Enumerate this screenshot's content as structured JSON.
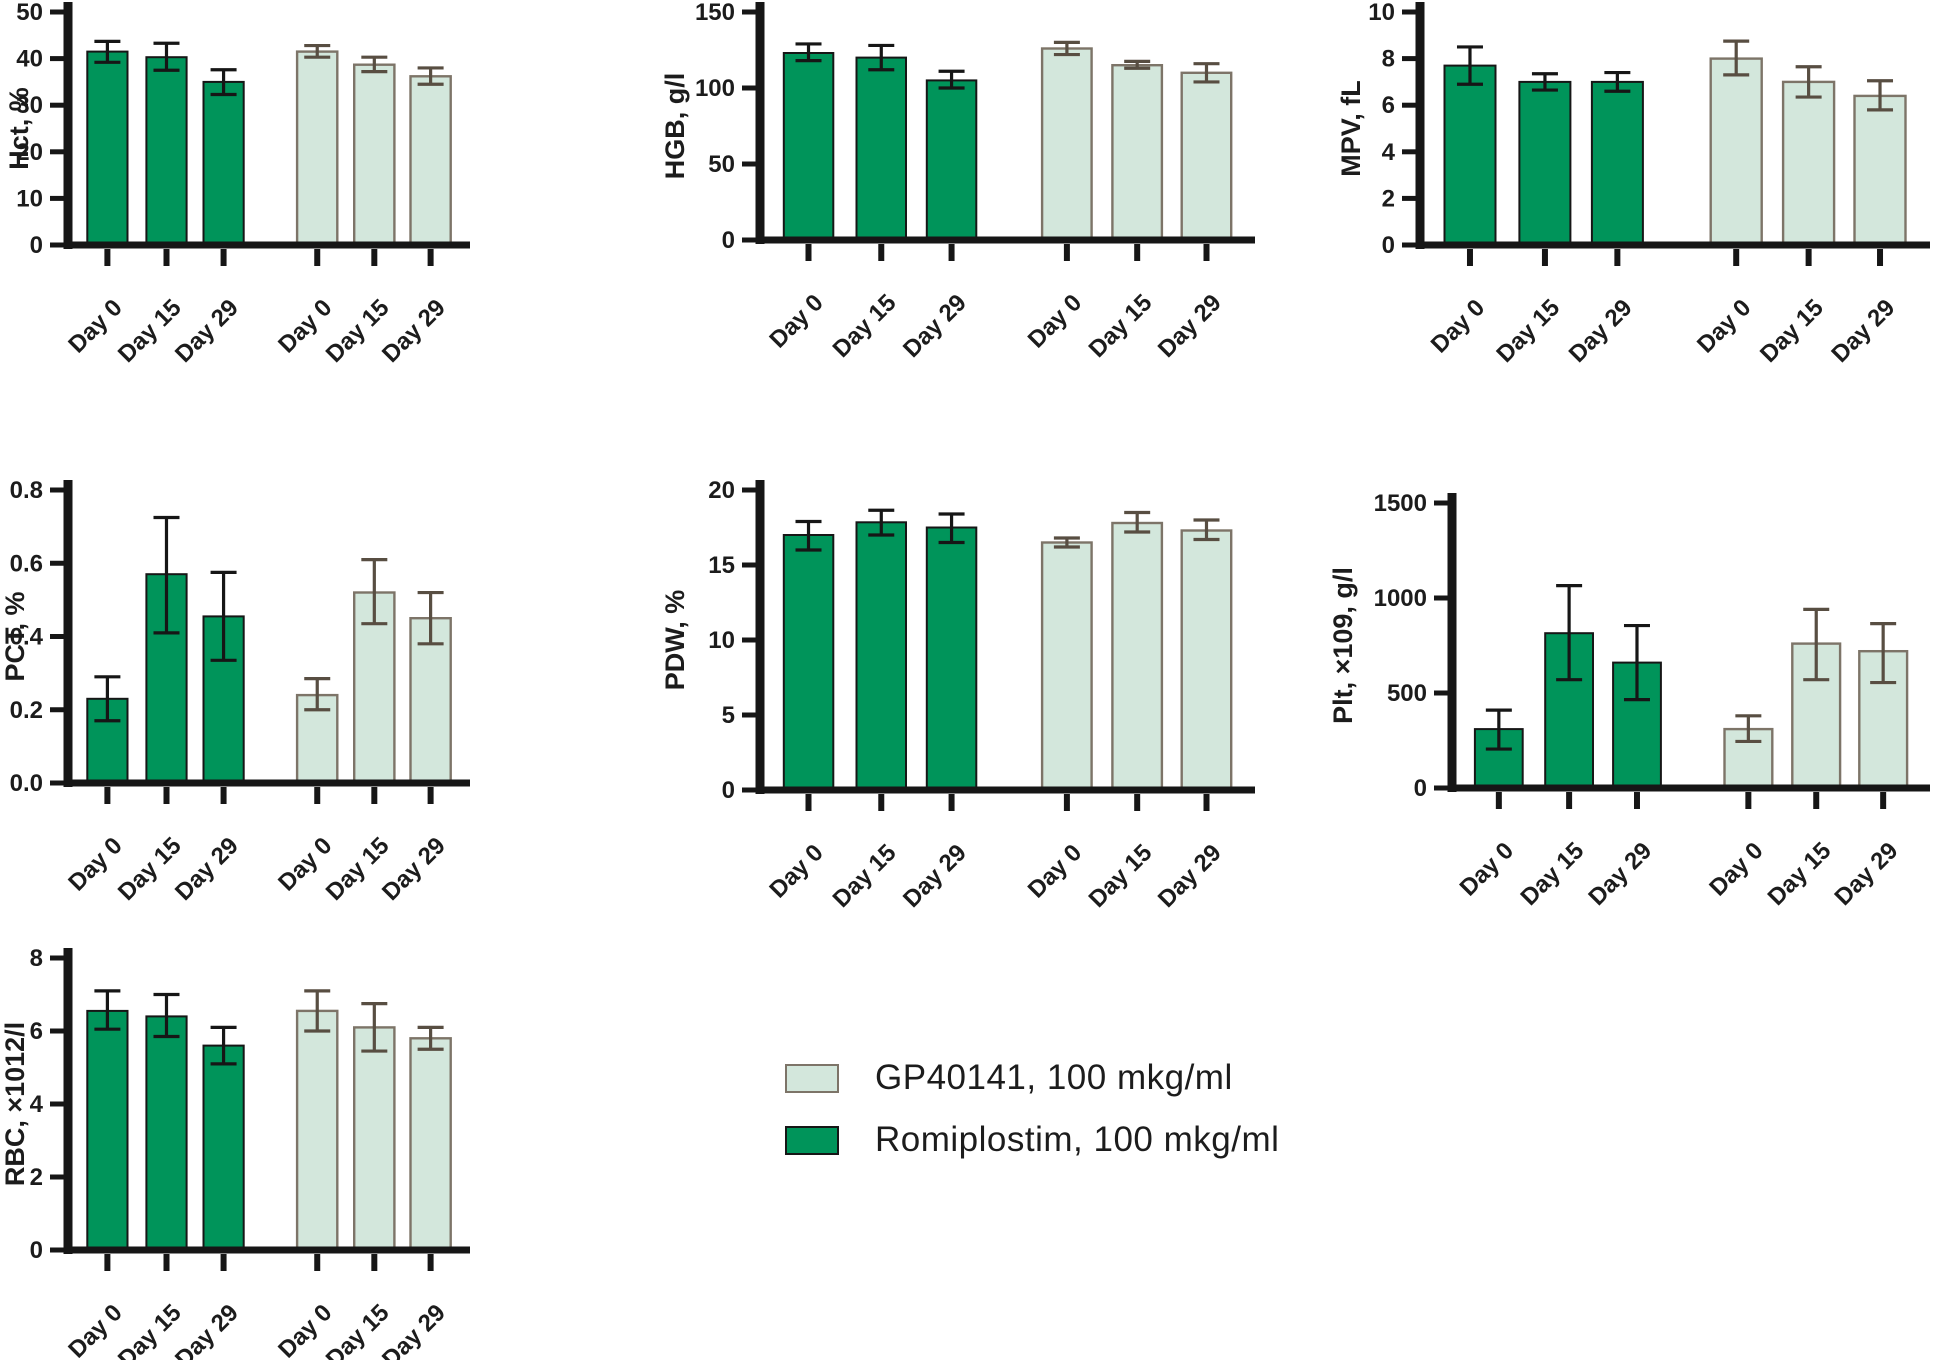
{
  "legend": {
    "items": [
      {
        "label": "GP40141, 100 mkg/ml",
        "series": "GP40141"
      },
      {
        "label": "Romiplostim, 100 mkg/ml",
        "series": "Romiplostim"
      }
    ]
  },
  "colors": {
    "romiplostim_fill": "#00945a",
    "romiplostim_border": "#161616",
    "gp40141_fill": "#d3e7dc",
    "gp40141_border": "#7d7468",
    "axis": "#161616",
    "error_bar_dark": "#161616",
    "error_bar_light": "#584e42",
    "text": "#1c1c1c"
  },
  "x_labels": [
    "Day 0",
    "Day 15",
    "Day 29"
  ],
  "chart_data": [
    {
      "type": "bar",
      "ylabel": "Hct, %",
      "ylim": [
        0,
        50
      ],
      "yticks": [
        "0",
        "10",
        "20",
        "30",
        "40",
        "50"
      ],
      "grid": false,
      "categories": [
        "Day 0",
        "Day 15",
        "Day 29",
        "Day 0",
        "Day 15",
        "Day 29"
      ],
      "series": [
        {
          "name": "Romiplostim, 100 mkg/ml",
          "values": [
            41.5,
            40.3,
            35.0
          ],
          "err_low": [
            2.3,
            2.8,
            2.7
          ],
          "err_high": [
            2.2,
            3.0,
            2.6
          ]
        },
        {
          "name": "GP40141, 100 mkg/ml",
          "values": [
            41.5,
            38.7,
            36.2
          ],
          "err_low": [
            1.2,
            1.5,
            1.7
          ],
          "err_high": [
            1.3,
            1.6,
            1.8
          ]
        }
      ]
    },
    {
      "type": "bar",
      "ylabel": "HGB, g/l",
      "ylim": [
        0,
        150
      ],
      "yticks": [
        "0",
        "50",
        "100",
        "150"
      ],
      "grid": false,
      "categories": [
        "Day 0",
        "Day 15",
        "Day 29",
        "Day 0",
        "Day 15",
        "Day 29"
      ],
      "series": [
        {
          "name": "Romiplostim, 100 mkg/ml",
          "values": [
            123,
            120,
            105
          ],
          "err_low": [
            5,
            8,
            5
          ],
          "err_high": [
            6,
            8,
            6
          ]
        },
        {
          "name": "GP40141, 100 mkg/ml",
          "values": [
            126,
            115,
            110
          ],
          "err_low": [
            4,
            2,
            6
          ],
          "err_high": [
            4,
            2.5,
            6
          ]
        }
      ]
    },
    {
      "type": "bar",
      "ylabel": "MPV, fL",
      "ylim": [
        0,
        10
      ],
      "yticks": [
        "0",
        "2",
        "4",
        "6",
        "8",
        "10"
      ],
      "grid": false,
      "categories": [
        "Day 0",
        "Day 15",
        "Day 29",
        "Day 0",
        "Day 15",
        "Day 29"
      ],
      "series": [
        {
          "name": "Romiplostim, 100 mkg/ml",
          "values": [
            7.7,
            7.0,
            7.0
          ],
          "err_low": [
            0.8,
            0.35,
            0.4
          ],
          "err_high": [
            0.8,
            0.35,
            0.4
          ]
        },
        {
          "name": "GP40141, 100 mkg/ml",
          "values": [
            8.0,
            7.0,
            6.4
          ],
          "err_low": [
            0.7,
            0.65,
            0.6
          ],
          "err_high": [
            0.75,
            0.65,
            0.65
          ]
        }
      ]
    },
    {
      "type": "bar",
      "ylabel": "PCT, %",
      "ylim": [
        0,
        0.8
      ],
      "yticks": [
        "0.0",
        "0.2",
        "0.4",
        "0.6",
        "0.8"
      ],
      "grid": false,
      "categories": [
        "Day 0",
        "Day 15",
        "Day 29",
        "Day 0",
        "Day 15",
        "Day 29"
      ],
      "series": [
        {
          "name": "Romiplostim, 100 mkg/ml",
          "values": [
            0.23,
            0.57,
            0.455
          ],
          "err_low": [
            0.06,
            0.16,
            0.12
          ],
          "err_high": [
            0.06,
            0.155,
            0.12
          ]
        },
        {
          "name": "GP40141, 100 mkg/ml",
          "values": [
            0.24,
            0.52,
            0.45
          ],
          "err_low": [
            0.04,
            0.085,
            0.07
          ],
          "err_high": [
            0.045,
            0.09,
            0.07
          ]
        }
      ]
    },
    {
      "type": "bar",
      "ylabel": "PDW, %",
      "ylim": [
        0,
        20
      ],
      "yticks": [
        "0",
        "5",
        "10",
        "15",
        "20"
      ],
      "grid": false,
      "categories": [
        "Day 0",
        "Day 15",
        "Day 29",
        "Day 0",
        "Day 15",
        "Day 29"
      ],
      "series": [
        {
          "name": "Romiplostim, 100 mkg/ml",
          "values": [
            17.0,
            17.85,
            17.5
          ],
          "err_low": [
            1.0,
            0.85,
            1.0
          ],
          "err_high": [
            0.9,
            0.8,
            0.9
          ]
        },
        {
          "name": "GP40141, 100 mkg/ml",
          "values": [
            16.5,
            17.8,
            17.3
          ],
          "err_low": [
            0.3,
            0.6,
            0.6
          ],
          "err_high": [
            0.3,
            0.7,
            0.7
          ]
        }
      ]
    },
    {
      "type": "bar",
      "ylabel": "Plt, ×109, g/l",
      "ylim": [
        0,
        1500
      ],
      "yticks": [
        "0",
        "500",
        "1000",
        "1500"
      ],
      "grid": false,
      "categories": [
        "Day 0",
        "Day 15",
        "Day 29",
        "Day 0",
        "Day 15",
        "Day 29"
      ],
      "series": [
        {
          "name": "Romiplostim, 100 mkg/ml",
          "values": [
            310,
            815,
            660
          ],
          "err_low": [
            105,
            245,
            195
          ],
          "err_high": [
            100,
            250,
            195
          ]
        },
        {
          "name": "GP40141, 100 mkg/ml",
          "values": [
            310,
            760,
            720
          ],
          "err_low": [
            65,
            190,
            165
          ],
          "err_high": [
            70,
            180,
            145
          ]
        }
      ]
    },
    {
      "type": "bar",
      "ylabel": "RBC, ×1012/l",
      "ylim": [
        0,
        8
      ],
      "yticks": [
        "0",
        "2",
        "4",
        "6",
        "8"
      ],
      "grid": false,
      "categories": [
        "Day 0",
        "Day 15",
        "Day 29",
        "Day 0",
        "Day 15",
        "Day 29"
      ],
      "series": [
        {
          "name": "Romiplostim, 100 mkg/ml",
          "values": [
            6.55,
            6.4,
            5.6
          ],
          "err_low": [
            0.5,
            0.55,
            0.5
          ],
          "err_high": [
            0.55,
            0.6,
            0.5
          ]
        },
        {
          "name": "GP40141, 100 mkg/ml",
          "values": [
            6.55,
            6.1,
            5.8
          ],
          "err_low": [
            0.55,
            0.65,
            0.3
          ],
          "err_high": [
            0.55,
            0.65,
            0.3
          ]
        }
      ]
    }
  ]
}
